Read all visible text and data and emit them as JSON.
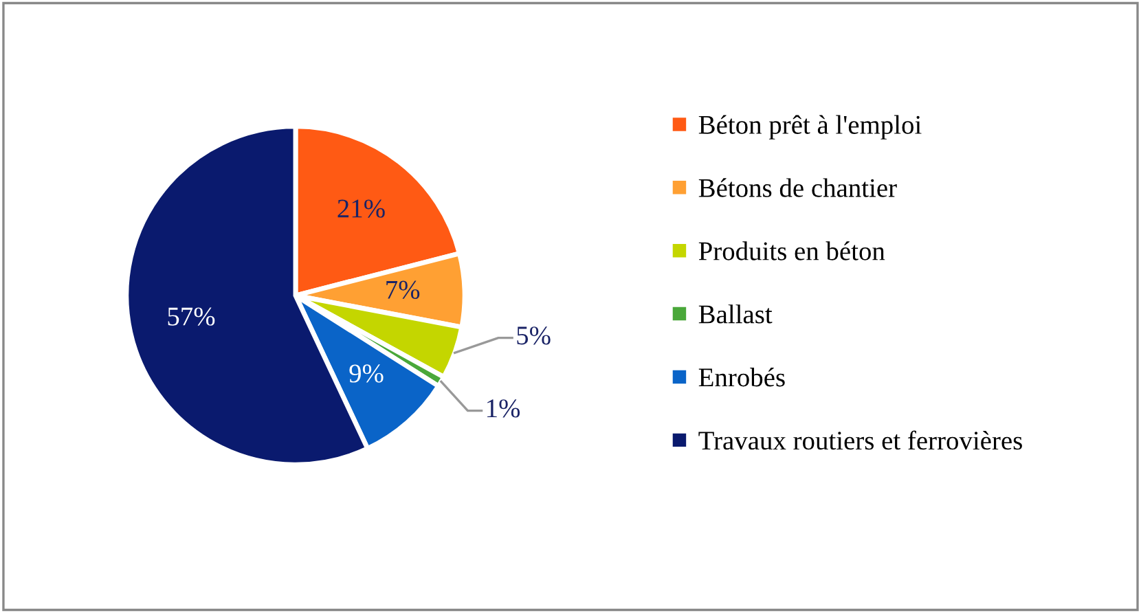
{
  "chart_data": {
    "type": "pie",
    "categories": [
      "Béton prêt à l'emploi",
      "Bétons de chantier",
      "Produits en béton",
      "Ballast",
      "Enrobés",
      "Travaux routiers et ferrovières"
    ],
    "values": [
      21,
      7,
      5,
      1,
      9,
      57
    ],
    "value_labels": [
      "21%",
      "7%",
      "5%",
      "1%",
      "9%",
      "57%"
    ],
    "colors": [
      "#ff5a14",
      "#ffa033",
      "#c4d600",
      "#4aa83a",
      "#0a64c8",
      "#0a1a6e"
    ],
    "legend": "right"
  }
}
